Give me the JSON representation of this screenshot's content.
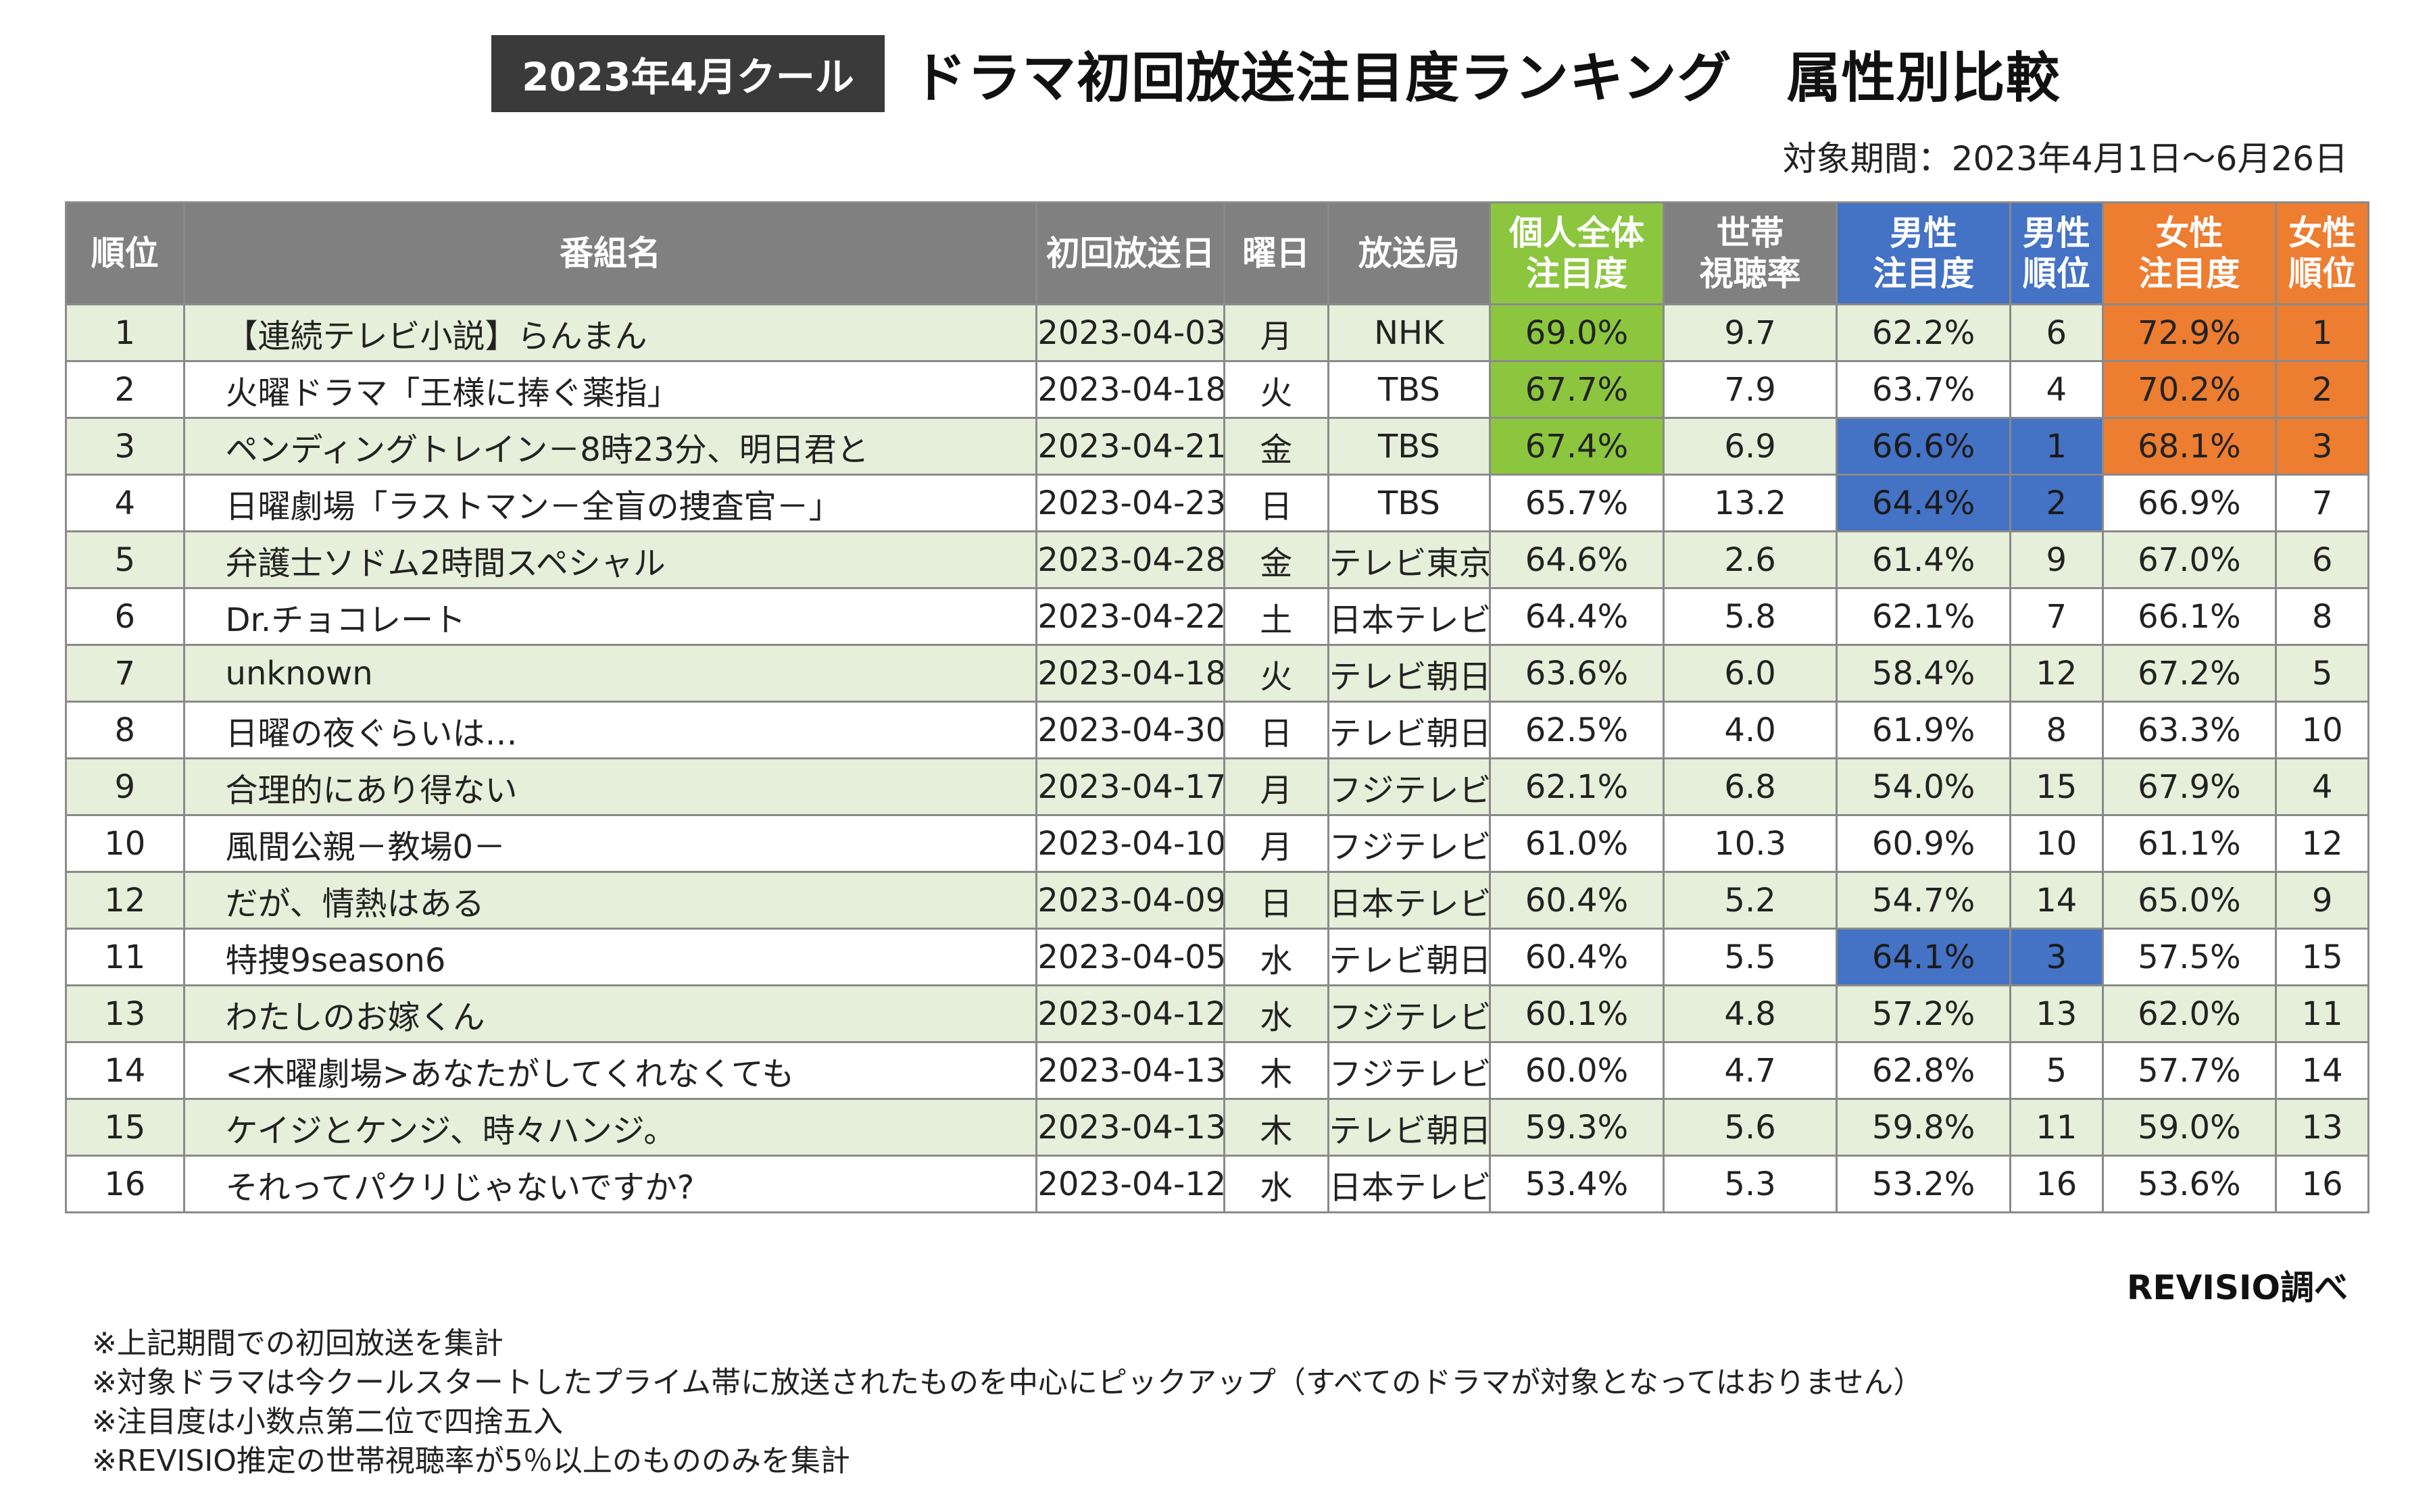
{
  "header": {
    "badge": "2023年4月クール",
    "title": "ドラマ初回放送注目度ランキング　属性別比較",
    "period": "対象期間：2023年4月1日～6月26日"
  },
  "table": {
    "columns": {
      "rank": "順位",
      "name": "番組名",
      "date": "初回放送日",
      "day": "曜日",
      "station": "放送局",
      "all_1": "個人全体",
      "all_2": "注目度",
      "hh_1": "世帯",
      "hh_2": "視聴率",
      "male_1": "男性",
      "male_2": "注目度",
      "male_rank_1": "男性",
      "male_rank_2": "順位",
      "female_1": "女性",
      "female_2": "注目度",
      "female_rank_1": "女性",
      "female_rank_2": "順位"
    },
    "highlight_colors": {
      "all": "#8cc63f",
      "male": "#4472c4",
      "female": "#ed7d31"
    },
    "rows": [
      {
        "rank": "1",
        "name": "【連続テレビ小説】らんまん",
        "date": "2023-04-03",
        "day": "月",
        "station": "NHK",
        "all": "69.0%",
        "hh": "9.7",
        "male": "62.2%",
        "male_rank": "6",
        "female": "72.9%",
        "female_rank": "1",
        "hl_all": true,
        "hl_male": false,
        "hl_female": true
      },
      {
        "rank": "2",
        "name": "火曜ドラマ「王様に捧ぐ薬指」",
        "date": "2023-04-18",
        "day": "火",
        "station": "TBS",
        "all": "67.7%",
        "hh": "7.9",
        "male": "63.7%",
        "male_rank": "4",
        "female": "70.2%",
        "female_rank": "2",
        "hl_all": true,
        "hl_male": false,
        "hl_female": true
      },
      {
        "rank": "3",
        "name": "ペンディングトレイン－8時23分、明日君と",
        "date": "2023-04-21",
        "day": "金",
        "station": "TBS",
        "all": "67.4%",
        "hh": "6.9",
        "male": "66.6%",
        "male_rank": "1",
        "female": "68.1%",
        "female_rank": "3",
        "hl_all": true,
        "hl_male": true,
        "hl_female": true
      },
      {
        "rank": "4",
        "name": "日曜劇場「ラストマン－全盲の捜査官－」",
        "date": "2023-04-23",
        "day": "日",
        "station": "TBS",
        "all": "65.7%",
        "hh": "13.2",
        "male": "64.4%",
        "male_rank": "2",
        "female": "66.9%",
        "female_rank": "7",
        "hl_all": false,
        "hl_male": true,
        "hl_female": false
      },
      {
        "rank": "5",
        "name": "弁護士ソドム2時間スペシャル",
        "date": "2023-04-28",
        "day": "金",
        "station": "テレビ東京",
        "all": "64.6%",
        "hh": "2.6",
        "male": "61.4%",
        "male_rank": "9",
        "female": "67.0%",
        "female_rank": "6",
        "hl_all": false,
        "hl_male": false,
        "hl_female": false
      },
      {
        "rank": "6",
        "name": "Dr.チョコレート",
        "date": "2023-04-22",
        "day": "土",
        "station": "日本テレビ",
        "all": "64.4%",
        "hh": "5.8",
        "male": "62.1%",
        "male_rank": "7",
        "female": "66.1%",
        "female_rank": "8",
        "hl_all": false,
        "hl_male": false,
        "hl_female": false
      },
      {
        "rank": "7",
        "name": "unknown",
        "date": "2023-04-18",
        "day": "火",
        "station": "テレビ朝日",
        "all": "63.6%",
        "hh": "6.0",
        "male": "58.4%",
        "male_rank": "12",
        "female": "67.2%",
        "female_rank": "5",
        "hl_all": false,
        "hl_male": false,
        "hl_female": false
      },
      {
        "rank": "8",
        "name": "日曜の夜ぐらいは…",
        "date": "2023-04-30",
        "day": "日",
        "station": "テレビ朝日",
        "all": "62.5%",
        "hh": "4.0",
        "male": "61.9%",
        "male_rank": "8",
        "female": "63.3%",
        "female_rank": "10",
        "hl_all": false,
        "hl_male": false,
        "hl_female": false
      },
      {
        "rank": "9",
        "name": "合理的にあり得ない",
        "date": "2023-04-17",
        "day": "月",
        "station": "フジテレビ",
        "all": "62.1%",
        "hh": "6.8",
        "male": "54.0%",
        "male_rank": "15",
        "female": "67.9%",
        "female_rank": "4",
        "hl_all": false,
        "hl_male": false,
        "hl_female": false
      },
      {
        "rank": "10",
        "name": "風間公親－教場0－",
        "date": "2023-04-10",
        "day": "月",
        "station": "フジテレビ",
        "all": "61.0%",
        "hh": "10.3",
        "male": "60.9%",
        "male_rank": "10",
        "female": "61.1%",
        "female_rank": "12",
        "hl_all": false,
        "hl_male": false,
        "hl_female": false
      },
      {
        "rank": "12",
        "name": "だが、情熱はある",
        "date": "2023-04-09",
        "day": "日",
        "station": "日本テレビ",
        "all": "60.4%",
        "hh": "5.2",
        "male": "54.7%",
        "male_rank": "14",
        "female": "65.0%",
        "female_rank": "9",
        "hl_all": false,
        "hl_male": false,
        "hl_female": false
      },
      {
        "rank": "11",
        "name": "特捜9season6",
        "date": "2023-04-05",
        "day": "水",
        "station": "テレビ朝日",
        "all": "60.4%",
        "hh": "5.5",
        "male": "64.1%",
        "male_rank": "3",
        "female": "57.5%",
        "female_rank": "15",
        "hl_all": false,
        "hl_male": true,
        "hl_female": false
      },
      {
        "rank": "13",
        "name": "わたしのお嫁くん",
        "date": "2023-04-12",
        "day": "水",
        "station": "フジテレビ",
        "all": "60.1%",
        "hh": "4.8",
        "male": "57.2%",
        "male_rank": "13",
        "female": "62.0%",
        "female_rank": "11",
        "hl_all": false,
        "hl_male": false,
        "hl_female": false
      },
      {
        "rank": "14",
        "name": "<木曜劇場>あなたがしてくれなくても",
        "date": "2023-04-13",
        "day": "木",
        "station": "フジテレビ",
        "all": "60.0%",
        "hh": "4.7",
        "male": "62.8%",
        "male_rank": "5",
        "female": "57.7%",
        "female_rank": "14",
        "hl_all": false,
        "hl_male": false,
        "hl_female": false
      },
      {
        "rank": "15",
        "name": "ケイジとケンジ、時々ハンジ。",
        "date": "2023-04-13",
        "day": "木",
        "station": "テレビ朝日",
        "all": "59.3%",
        "hh": "5.6",
        "male": "59.8%",
        "male_rank": "11",
        "female": "59.0%",
        "female_rank": "13",
        "hl_all": false,
        "hl_male": false,
        "hl_female": false
      },
      {
        "rank": "16",
        "name": "それってパクリじゃないですか?",
        "date": "2023-04-12",
        "day": "水",
        "station": "日本テレビ",
        "all": "53.4%",
        "hh": "5.3",
        "male": "53.2%",
        "male_rank": "16",
        "female": "53.6%",
        "female_rank": "16",
        "hl_all": false,
        "hl_male": false,
        "hl_female": false
      }
    ]
  },
  "source": "REVISIO調べ",
  "notes": [
    "※上記期間での初回放送を集計",
    "※対象ドラマは今クールスタートしたプライム帯に放送されたものを中心にピックアップ（すべてのドラマが対象となってはおりません）",
    "※注目度は小数点第二位で四捨五入",
    "※REVISIO推定の世帯視聴率が5％以上のもののみを集計"
  ]
}
